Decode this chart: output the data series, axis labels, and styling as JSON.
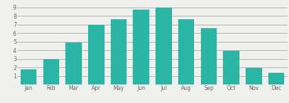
{
  "months": [
    "Jan",
    "Feb",
    "Mar",
    "Apr",
    "May",
    "Jun",
    "Jul",
    "Aug",
    "Sep",
    "Oct",
    "Nov",
    "Dec"
  ],
  "values": [
    1.8,
    3.0,
    4.9,
    7.0,
    7.6,
    8.7,
    9.0,
    7.6,
    6.6,
    3.9,
    1.9,
    1.4
  ],
  "bar_color": "#2ab5a5",
  "background_color": "#f0f0ee",
  "grid_color": "#999999",
  "tick_color": "#666666",
  "ylim": [
    0,
    9.5
  ],
  "yticks": [
    1,
    2,
    3,
    4,
    5,
    6,
    7,
    8,
    9
  ],
  "bar_width": 0.72
}
